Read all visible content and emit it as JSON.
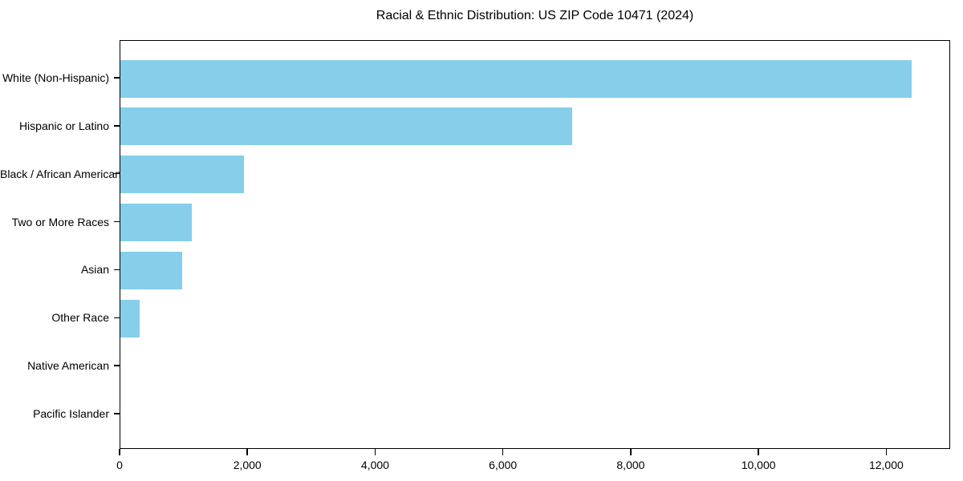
{
  "title": "Racial & Ethnic Distribution: US ZIP Code 10471 (2024)",
  "colors": {
    "bar": "#87CEEB",
    "axis": "#000000",
    "background": "#FFFFFF",
    "text": "#000000"
  },
  "chart_data": {
    "type": "bar",
    "orientation": "horizontal",
    "title": "Racial & Ethnic Distribution: US ZIP Code 10471 (2024)",
    "categories": [
      "White (Non-Hispanic)",
      "Hispanic or Latino",
      "Black / African American",
      "Two or More Races",
      "Asian",
      "Other Race",
      "Native American",
      "Pacific Islander"
    ],
    "values": [
      12380,
      7070,
      1930,
      1115,
      965,
      300,
      0,
      0
    ],
    "xlabel": "",
    "ylabel": "",
    "xlim": [
      0,
      13000
    ],
    "x_ticks": [
      0,
      2000,
      4000,
      6000,
      8000,
      10000,
      12000
    ],
    "x_tick_labels": [
      "0",
      "2,000",
      "4,000",
      "6,000",
      "8,000",
      "10,000",
      "12,000"
    ],
    "grid": false,
    "legend": null,
    "bar_color": "#87CEEB"
  }
}
